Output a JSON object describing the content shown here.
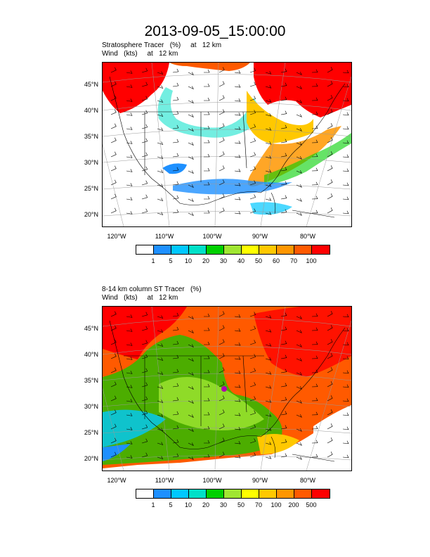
{
  "title": "2013-09-05_15:00:00",
  "panels": [
    {
      "subtitle1": "Stratosphere Tracer   (%)     at   12 km",
      "subtitle2": "Wind   (kts)     at   12 km",
      "lat_labels": [
        "45°N",
        "40°N",
        "35°N",
        "30°N",
        "25°N",
        "20°N"
      ],
      "lon_labels": [
        "120°W",
        "110°W",
        "100°W",
        "90°W",
        "80°W"
      ],
      "colorbar_labels": [
        "1",
        "5",
        "10",
        "20",
        "30",
        "40",
        "50",
        "60",
        "70",
        "100"
      ]
    },
    {
      "subtitle1": "8-14 km column ST Tracer   (%)",
      "subtitle2": "Wind   (kts)     at   12 km",
      "lat_labels": [
        "45°N",
        "40°N",
        "35°N",
        "30°N",
        "25°N",
        "20°N"
      ],
      "lon_labels": [
        "120°W",
        "110°W",
        "100°W",
        "90°W",
        "80°W"
      ],
      "colorbar_labels": [
        "1",
        "5",
        "10",
        "20",
        "30",
        "50",
        "70",
        "100",
        "200",
        "500"
      ]
    }
  ],
  "colorbar_colors": [
    "#ffffff",
    "#1e90ff",
    "#00c8ff",
    "#00e0c8",
    "#00d000",
    "#a0e632",
    "#ffff00",
    "#ffc800",
    "#ff9600",
    "#ff5a00",
    "#ff0000"
  ]
}
